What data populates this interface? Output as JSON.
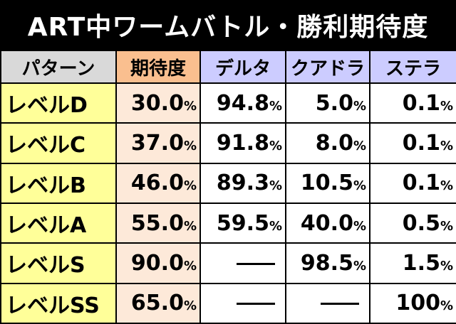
{
  "title": "ART中ワームバトル・勝利期待度",
  "headers": [
    "パターン",
    "期待度",
    "デルタ",
    "クアドラ",
    "ステラ"
  ],
  "colors": {
    "pattern_header": "#d9d9d9",
    "rate_header": "#fabf8f",
    "opponent_header": "#ccccff",
    "pattern_cell": "#ffff99",
    "rate_cell": "#fde9d9",
    "value_cell": "#ffffff"
  },
  "rows": [
    {
      "pattern": "レベルD",
      "rate": "30.0",
      "delta": "94.8",
      "quadra": "5.0",
      "stella": "0.1"
    },
    {
      "pattern": "レベルC",
      "rate": "37.0",
      "delta": "91.8",
      "quadra": "8.0",
      "stella": "0.1"
    },
    {
      "pattern": "レベルB",
      "rate": "46.0",
      "delta": "89.3",
      "quadra": "10.5",
      "stella": "0.1"
    },
    {
      "pattern": "レベルA",
      "rate": "55.0",
      "delta": "59.5",
      "quadra": "40.0",
      "stella": "0.5"
    },
    {
      "pattern": "レベルS",
      "rate": "90.0",
      "delta": "—",
      "quadra": "98.5",
      "stella": "1.5"
    },
    {
      "pattern": "レベルSS",
      "rate": "65.0",
      "delta": "—",
      "quadra": "—",
      "stella": "100"
    }
  ],
  "unit": "%"
}
